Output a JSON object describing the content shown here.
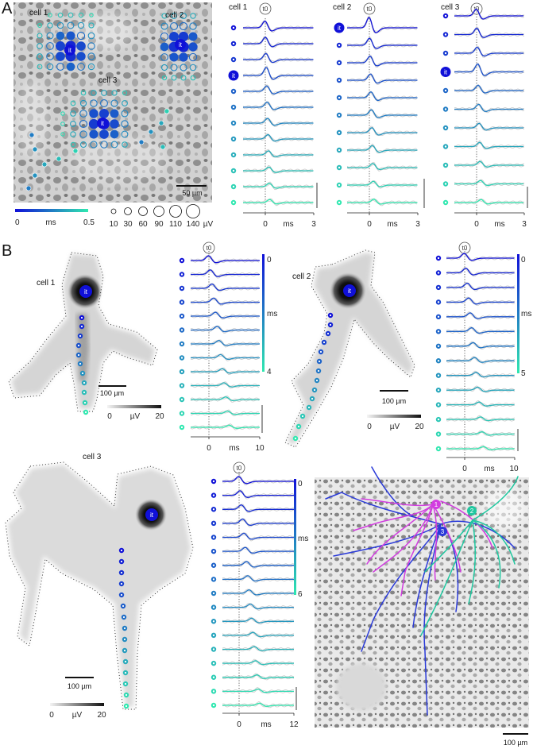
{
  "panelA": {
    "label": "A",
    "image": {
      "cell_labels": [
        "cell 1",
        "cell 2",
        "cell 3"
      ],
      "it_label": "it",
      "scalebar_label": "50 µm"
    },
    "colorbar": {
      "min": "0",
      "unit": "ms",
      "max": "0.5"
    },
    "size_legend": {
      "values": [
        "10",
        "30",
        "60",
        "90",
        "110",
        "140"
      ],
      "unit": "µV"
    },
    "traces": [
      {
        "title": "cell 1",
        "marker": "t0",
        "it_row": 3,
        "rows": 12,
        "xaxis": {
          "ticks": [
            "0",
            "3"
          ],
          "unit": "ms"
        }
      },
      {
        "title": "cell 2",
        "marker": "t0",
        "it_row": 0,
        "rows": 11,
        "xaxis": {
          "ticks": [
            "0",
            "3"
          ],
          "unit": "ms"
        }
      },
      {
        "title": "cell 3",
        "marker": "t0",
        "it_row": 3,
        "rows": 11,
        "xaxis": {
          "ticks": [
            "0",
            "3"
          ],
          "unit": "ms"
        }
      }
    ]
  },
  "panelB": {
    "label": "B",
    "it_label": "it",
    "maps": [
      {
        "title": "cell 1",
        "scalebar": "100 µm",
        "cbar": {
          "min": "0",
          "unit": "µV",
          "max": "20"
        }
      },
      {
        "title": "cell 2",
        "scalebar": "100 µm",
        "cbar": {
          "min": "0",
          "unit": "µV",
          "max": "20"
        }
      },
      {
        "title": "cell 3",
        "scalebar": "100 µm",
        "cbar": {
          "min": "0",
          "unit": "µV",
          "max": "20"
        }
      }
    ],
    "traces": [
      {
        "marker": "t0",
        "rows": 13,
        "xaxis": {
          "ticks": [
            "0",
            "10"
          ],
          "unit": "ms"
        },
        "cbar": {
          "min": "0",
          "unit": "ms",
          "max": "4"
        }
      },
      {
        "marker": "t0",
        "rows": 14,
        "xaxis": {
          "ticks": [
            "0",
            "10"
          ],
          "unit": "ms"
        },
        "cbar": {
          "min": "0",
          "unit": "ms",
          "max": "5"
        }
      },
      {
        "marker": "t0",
        "rows": 17,
        "xaxis": {
          "ticks": [
            "0",
            "12"
          ],
          "unit": "ms"
        },
        "cbar": {
          "min": "0",
          "unit": "ms",
          "max": "6"
        }
      }
    ],
    "morphology": {
      "cell_markers": [
        "1",
        "2",
        "3"
      ],
      "colors": {
        "cell1": "#d23ce0",
        "cell2": "#20c8a0",
        "cell3": "#2a3ad8"
      },
      "scalebar": "100 µm"
    }
  },
  "colors": {
    "early": "#1010d8",
    "late": "#30e8b0",
    "trace_gray": "#c9c9c9"
  }
}
